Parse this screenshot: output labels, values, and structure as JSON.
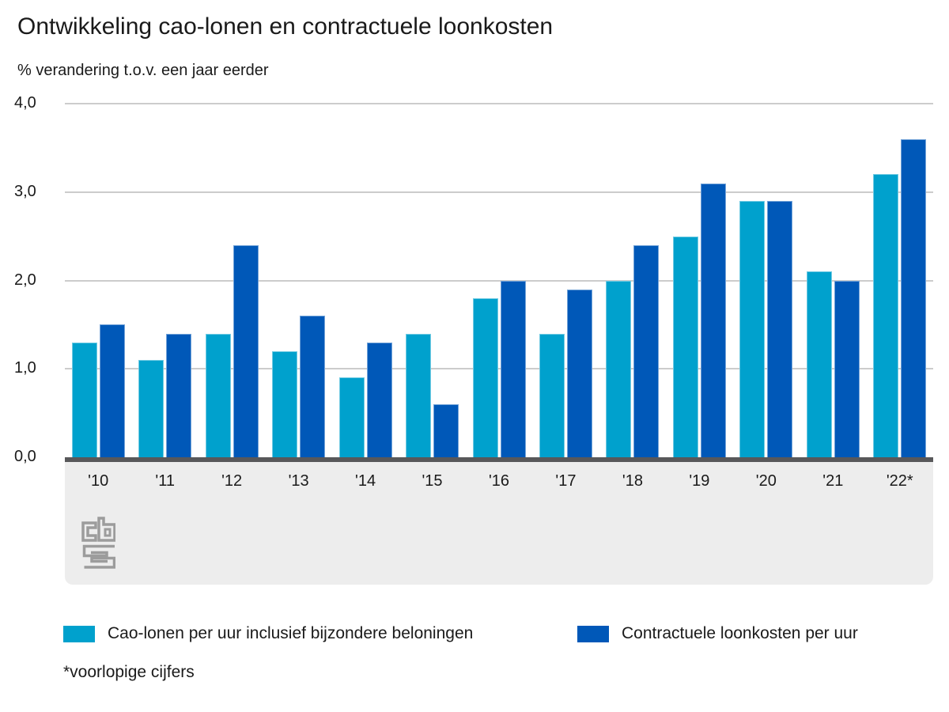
{
  "title": "Ontwikkeling cao-lonen en contractuele loonkosten",
  "subtitle": "% verandering t.o.v. een jaar eerder",
  "footnote": "*voorlopige cijfers",
  "logo": {
    "name": "cbs-logo"
  },
  "colors": {
    "series_cao": "#00a1cd",
    "series_loonkosten": "#0058b8",
    "gridline": "#cccccc",
    "axis_line": "#58585a",
    "x_band": "#ededed",
    "text": "#1a1a1a",
    "logo_gray": "#9c9c9c"
  },
  "chart_data": {
    "type": "bar",
    "title": "Ontwikkeling cao-lonen en contractuele loonkosten",
    "subtitle": "% verandering t.o.v. een jaar eerder",
    "xlabel": "",
    "ylabel": "% verandering t.o.v. een jaar eerder",
    "ylim": [
      0.0,
      4.0
    ],
    "ytick_values": [
      0.0,
      1.0,
      2.0,
      3.0,
      4.0
    ],
    "ytick_labels": [
      "0,0",
      "1,0",
      "2,0",
      "3,0",
      "4,0"
    ],
    "grid": true,
    "legend_position": "bottom",
    "categories": [
      "'10",
      "'11",
      "'12",
      "'13",
      "'14",
      "'15",
      "'16",
      "'17",
      "'18",
      "'19",
      "'20",
      "'21",
      "'22*"
    ],
    "series": [
      {
        "name": "Cao-lonen per uur inclusief bijzondere beloningen",
        "color": "#00a1cd",
        "values": [
          1.3,
          1.1,
          1.4,
          1.2,
          0.9,
          1.4,
          1.8,
          1.4,
          2.0,
          2.5,
          2.9,
          2.1,
          3.2
        ]
      },
      {
        "name": "Contractuele loonkosten per uur",
        "color": "#0058b8",
        "values": [
          1.5,
          1.4,
          2.4,
          1.6,
          1.3,
          0.6,
          2.0,
          1.9,
          2.4,
          3.1,
          2.9,
          2.0,
          3.6
        ]
      }
    ],
    "footnote": "*voorlopige cijfers"
  }
}
